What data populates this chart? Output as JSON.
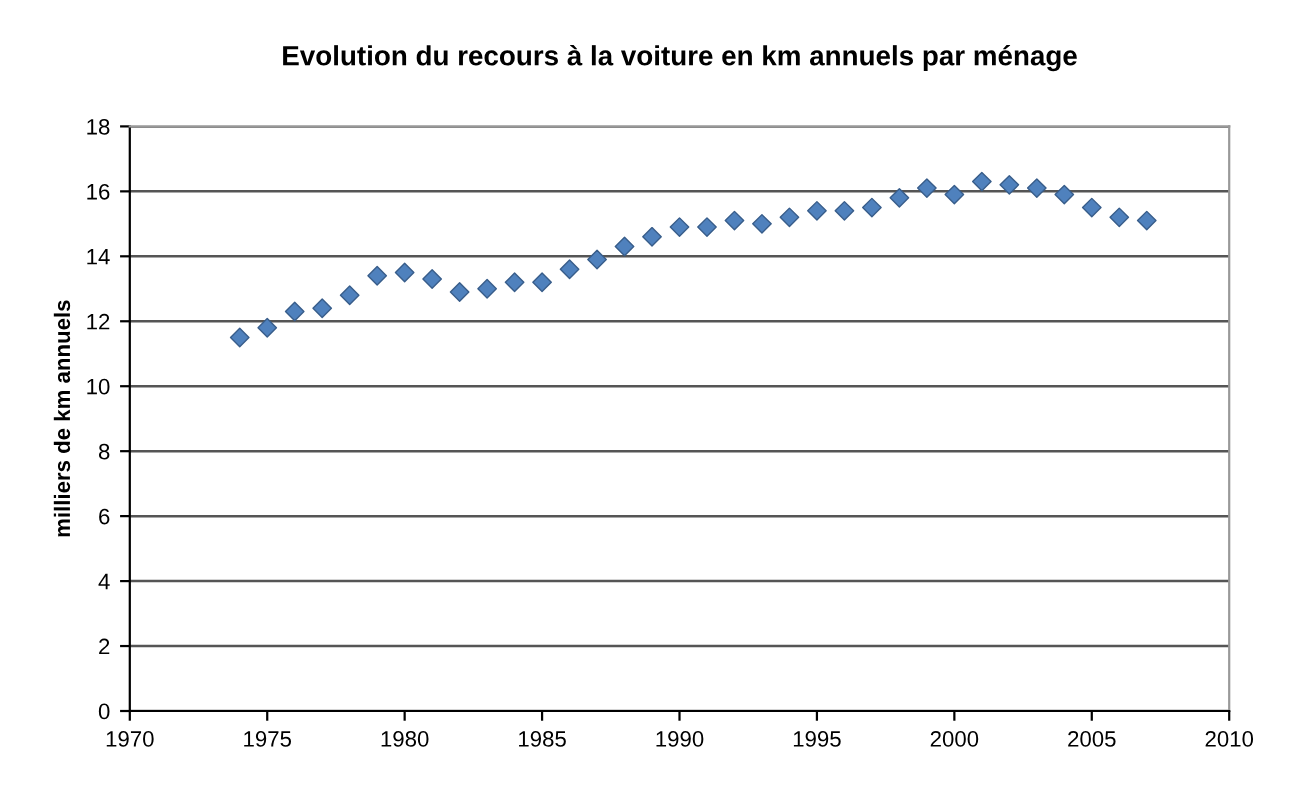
{
  "chart_data": {
    "type": "scatter",
    "title": "Evolution du recours à la voiture en km annuels par ménage",
    "ylabel": "milliers de km annuels",
    "x": [
      1974,
      1975,
      1976,
      1977,
      1978,
      1979,
      1980,
      1981,
      1982,
      1983,
      1984,
      1985,
      1986,
      1987,
      1988,
      1989,
      1990,
      1991,
      1992,
      1993,
      1994,
      1995,
      1996,
      1997,
      1998,
      1999,
      2000,
      2001,
      2002,
      2003,
      2004,
      2005,
      2006,
      2007
    ],
    "values": [
      11.5,
      11.8,
      12.3,
      12.4,
      12.8,
      13.4,
      13.5,
      13.3,
      12.9,
      13.0,
      13.2,
      13.2,
      13.6,
      13.9,
      14.3,
      14.6,
      14.9,
      14.9,
      15.1,
      15.0,
      15.2,
      15.4,
      15.4,
      15.5,
      15.8,
      16.1,
      15.9,
      16.3,
      16.2,
      16.1,
      15.9,
      15.5,
      15.2,
      15.1
    ],
    "color": "#4f81bd",
    "marker": "diamond",
    "xlim": [
      1970,
      2010
    ],
    "xticks": [
      1970,
      1975,
      1980,
      1985,
      1990,
      1995,
      2000,
      2005,
      2010
    ],
    "ylim": [
      0,
      18
    ],
    "yticks": [
      0,
      2,
      4,
      6,
      8,
      10,
      12,
      14,
      16,
      18
    ],
    "grid": "y"
  }
}
